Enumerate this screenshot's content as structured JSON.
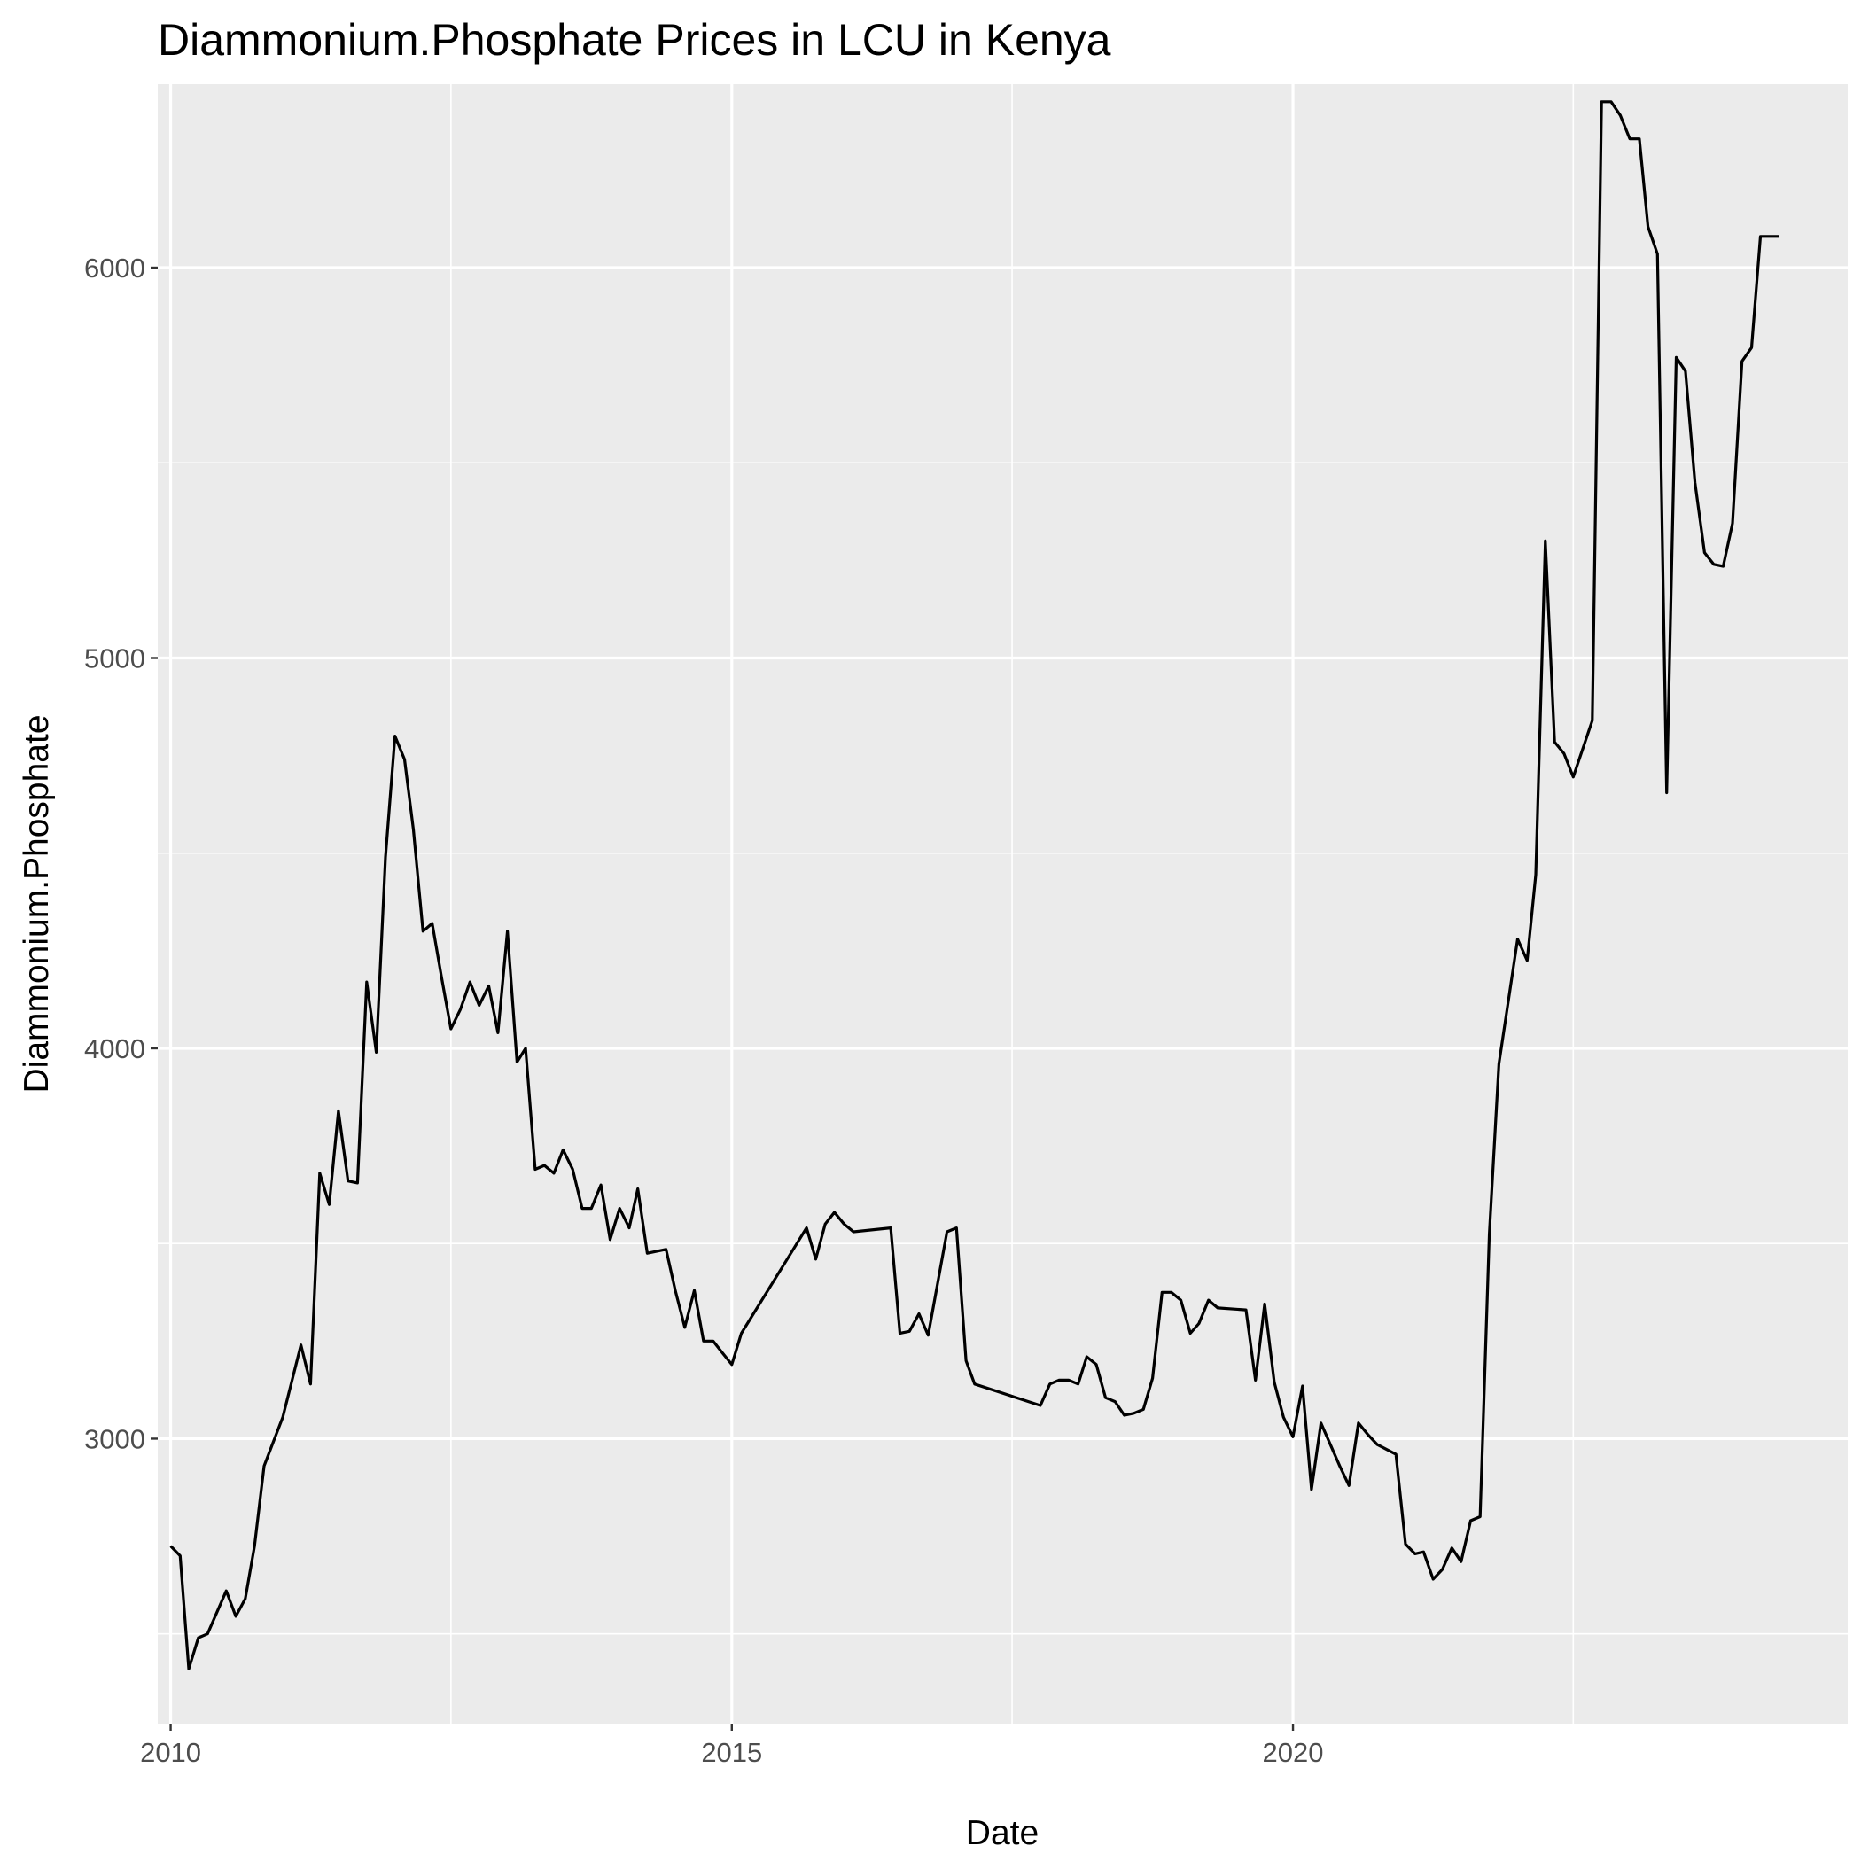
{
  "chart_data": {
    "type": "line",
    "title": "Diammonium.Phosphate Prices in LCU in Kenya",
    "xlabel": "Date",
    "ylabel": "Diammonium.Phosphate",
    "x_axis_type": "date",
    "xlim": [
      "2009-11-20",
      "2024-12-10"
    ],
    "ylim": [
      2270,
      6470
    ],
    "x_major_ticks": [
      {
        "date": "2010-01-01",
        "label": "2010"
      },
      {
        "date": "2015-01-01",
        "label": "2015"
      },
      {
        "date": "2020-01-01",
        "label": "2020"
      }
    ],
    "x_minor_ticks": [
      "2012-07-01",
      "2017-07-01",
      "2022-07-01"
    ],
    "y_major_ticks": [
      {
        "value": 3000,
        "label": "3000"
      },
      {
        "value": 4000,
        "label": "4000"
      },
      {
        "value": 5000,
        "label": "5000"
      },
      {
        "value": 6000,
        "label": "6000"
      }
    ],
    "y_minor_ticks": [
      2500,
      3500,
      4500,
      5500,
      6500
    ],
    "grid": true,
    "legend": "none",
    "line_color": "#000000",
    "panel_color": "#ebebeb",
    "series": [
      {
        "x": [
          "2010-01-01",
          "2010-02-01",
          "2010-03-01",
          "2010-04-01",
          "2010-05-01",
          "2010-07-01",
          "2010-08-01",
          "2010-09-01",
          "2010-10-01",
          "2010-11-01",
          "2011-01-01",
          "2011-03-01",
          "2011-04-01",
          "2011-05-01",
          "2011-06-01",
          "2011-07-01",
          "2011-08-01",
          "2011-09-01",
          "2011-10-01",
          "2011-11-01",
          "2011-12-01",
          "2012-01-01",
          "2012-02-01",
          "2012-03-01",
          "2012-04-01",
          "2012-05-01",
          "2012-06-01",
          "2012-07-01",
          "2012-08-01",
          "2012-09-01",
          "2012-10-01",
          "2012-11-01",
          "2012-12-01",
          "2013-01-01",
          "2013-02-01",
          "2013-03-01",
          "2013-04-01",
          "2013-05-01",
          "2013-06-01",
          "2013-07-01",
          "2013-08-01",
          "2013-09-01",
          "2013-10-01",
          "2013-11-01",
          "2013-12-01",
          "2014-01-01",
          "2014-02-01",
          "2014-03-01",
          "2014-04-01",
          "2014-06-01",
          "2014-07-01",
          "2014-08-01",
          "2014-09-01",
          "2014-10-01",
          "2014-11-01",
          "2014-12-01",
          "2015-01-01",
          "2015-02-01",
          "2015-09-01",
          "2015-10-01",
          "2015-11-01",
          "2015-12-01",
          "2016-01-01",
          "2016-02-01",
          "2016-06-01",
          "2016-07-01",
          "2016-08-01",
          "2016-09-01",
          "2016-10-01",
          "2016-12-01",
          "2017-01-01",
          "2017-02-01",
          "2017-03-01",
          "2017-10-01",
          "2017-11-01",
          "2017-12-01",
          "2018-01-01",
          "2018-02-01",
          "2018-03-01",
          "2018-04-01",
          "2018-05-01",
          "2018-06-01",
          "2018-07-01",
          "2018-08-01",
          "2018-09-01",
          "2018-10-01",
          "2018-11-01",
          "2018-12-01",
          "2019-01-01",
          "2019-02-01",
          "2019-03-01",
          "2019-04-01",
          "2019-05-01",
          "2019-08-01",
          "2019-09-01",
          "2019-10-01",
          "2019-11-01",
          "2019-12-01",
          "2020-01-01",
          "2020-02-01",
          "2020-03-01",
          "2020-04-01",
          "2020-06-01",
          "2020-07-01",
          "2020-08-01",
          "2020-09-01",
          "2020-10-01",
          "2020-12-01",
          "2021-01-01",
          "2021-02-01",
          "2021-03-01",
          "2021-04-01",
          "2021-05-01",
          "2021-06-01",
          "2021-07-01",
          "2021-08-01",
          "2021-09-01",
          "2021-10-01",
          "2021-11-01",
          "2022-01-01",
          "2022-02-01",
          "2022-03-01",
          "2022-04-01",
          "2022-05-01",
          "2022-06-01",
          "2022-07-01",
          "2022-09-01",
          "2022-10-01",
          "2022-11-01",
          "2022-12-01",
          "2023-01-01",
          "2023-02-01",
          "2023-03-01",
          "2023-04-01",
          "2023-05-01",
          "2023-06-01",
          "2023-07-01",
          "2023-08-01",
          "2023-09-01",
          "2023-10-01",
          "2023-11-01",
          "2023-12-01",
          "2024-01-01",
          "2024-02-01",
          "2024-03-01",
          "2024-04-01",
          "2024-05-01"
        ],
        "values": [
          2725,
          2700,
          2410,
          2490,
          2500,
          2610,
          2545,
          2590,
          2725,
          2930,
          3055,
          3240,
          3140,
          3680,
          3600,
          3840,
          3660,
          3655,
          4170,
          3990,
          4490,
          4800,
          4740,
          4560,
          4300,
          4320,
          4180,
          4050,
          4100,
          4170,
          4110,
          4160,
          4040,
          4300,
          3965,
          4000,
          3690,
          3700,
          3680,
          3740,
          3690,
          3590,
          3590,
          3650,
          3510,
          3590,
          3540,
          3640,
          3475,
          3485,
          3380,
          3285,
          3380,
          3250,
          3250,
          3220,
          3190,
          3270,
          3540,
          3460,
          3550,
          3580,
          3550,
          3530,
          3540,
          3270,
          3275,
          3320,
          3265,
          3530,
          3540,
          3200,
          3140,
          3085,
          3140,
          3150,
          3150,
          3140,
          3210,
          3190,
          3105,
          3095,
          3060,
          3065,
          3075,
          3155,
          3375,
          3375,
          3355,
          3270,
          3295,
          3355,
          3335,
          3330,
          3150,
          3345,
          3145,
          3055,
          3005,
          3135,
          2870,
          3040,
          2930,
          2880,
          3040,
          3010,
          2985,
          2960,
          2730,
          2705,
          2710,
          2640,
          2665,
          2720,
          2685,
          2790,
          2800,
          3525,
          3960,
          4280,
          4225,
          4445,
          5300,
          4785,
          4755,
          4695,
          4840,
          6425,
          6425,
          6390,
          6330,
          6330,
          6105,
          6035,
          4655,
          5770,
          5735,
          5450,
          5270,
          5240,
          5235,
          5345,
          5760,
          5795,
          6080,
          6080,
          6080
        ]
      }
    ]
  }
}
